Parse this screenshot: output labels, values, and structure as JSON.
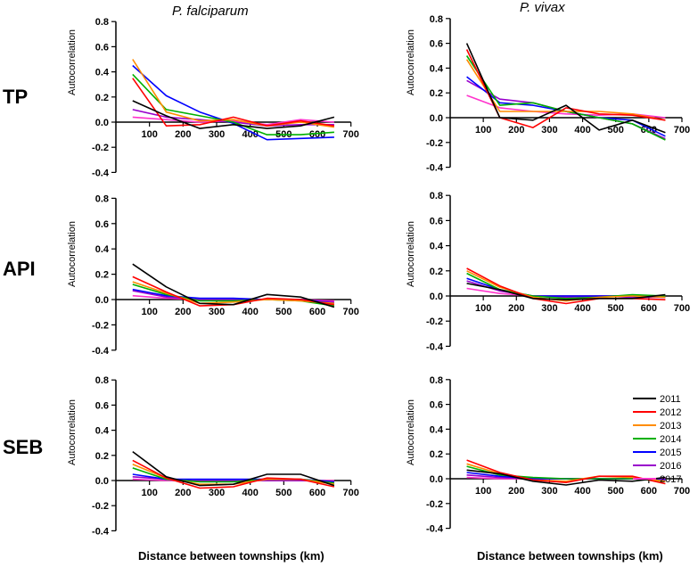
{
  "row_labels": [
    "TP",
    "API",
    "SEB"
  ],
  "column_titles": [
    "P. falciparum",
    "P. vivax"
  ],
  "x_axis_title_left": "Distance between townships (km)",
  "x_axis_title_right": "Distance between townships (km)",
  "chart_data": {
    "type": "line",
    "ylabel": "Autocorrelation",
    "xticks": [
      100,
      200,
      300,
      400,
      500,
      600,
      700
    ],
    "yticks": [
      -0.4,
      -0.2,
      0.0,
      0.2,
      0.4,
      0.6,
      0.8
    ],
    "ylim": [
      -0.4,
      0.8
    ],
    "xlim": [
      0,
      700
    ],
    "x": [
      50,
      150,
      250,
      350,
      450,
      550,
      650
    ],
    "legend": {
      "placement": "right, bottom row",
      "entries": [
        {
          "name": "2011",
          "color": "#000000"
        },
        {
          "name": "2012",
          "color": "#ff0000"
        },
        {
          "name": "2013",
          "color": "#ff8c00"
        },
        {
          "name": "2014",
          "color": "#00b000"
        },
        {
          "name": "2015",
          "color": "#0000ff"
        },
        {
          "name": "2016",
          "color": "#9900cc"
        },
        {
          "name": "2017",
          "color": "#ff33cc"
        }
      ]
    },
    "panels": [
      {
        "row": "TP",
        "column": "P. falciparum",
        "series": [
          {
            "name": "2011",
            "values": [
              0.17,
              0.05,
              -0.05,
              -0.02,
              -0.05,
              -0.03,
              0.04
            ]
          },
          {
            "name": "2012",
            "values": [
              0.35,
              -0.03,
              -0.02,
              0.04,
              -0.03,
              0.01,
              -0.03
            ]
          },
          {
            "name": "2013",
            "values": [
              0.5,
              0.08,
              0.01,
              0.02,
              -0.03,
              0.0,
              -0.04
            ]
          },
          {
            "name": "2014",
            "values": [
              0.38,
              0.1,
              0.05,
              0.0,
              -0.1,
              -0.1,
              -0.08
            ]
          },
          {
            "name": "2015",
            "values": [
              0.45,
              0.21,
              0.08,
              -0.01,
              -0.14,
              -0.13,
              -0.12
            ]
          },
          {
            "name": "2016",
            "values": [
              0.1,
              0.04,
              0.02,
              0.0,
              -0.03,
              -0.02,
              -0.02
            ]
          },
          {
            "name": "2017",
            "values": [
              0.04,
              0.02,
              0.0,
              0.01,
              -0.02,
              0.02,
              0.0
            ]
          }
        ]
      },
      {
        "row": "TP",
        "column": "P. vivax",
        "series": [
          {
            "name": "2011",
            "values": [
              0.6,
              0.0,
              -0.02,
              0.1,
              -0.1,
              -0.02,
              -0.12
            ]
          },
          {
            "name": "2012",
            "values": [
              0.55,
              0.0,
              -0.08,
              0.08,
              0.03,
              0.02,
              -0.02
            ]
          },
          {
            "name": "2013",
            "values": [
              0.47,
              0.05,
              0.05,
              0.05,
              0.05,
              0.03,
              -0.02
            ]
          },
          {
            "name": "2014",
            "values": [
              0.5,
              0.1,
              0.12,
              0.05,
              0.0,
              -0.05,
              -0.18
            ]
          },
          {
            "name": "2015",
            "values": [
              0.33,
              0.12,
              0.1,
              0.05,
              0.0,
              -0.02,
              -0.15
            ]
          },
          {
            "name": "2016",
            "values": [
              0.3,
              0.15,
              0.12,
              0.05,
              0.0,
              -0.05,
              -0.17
            ]
          },
          {
            "name": "2017",
            "values": [
              0.18,
              0.08,
              0.05,
              0.03,
              0.02,
              0.03,
              0.0
            ]
          }
        ]
      },
      {
        "row": "API",
        "column": "P. falciparum",
        "series": [
          {
            "name": "2011",
            "values": [
              0.28,
              0.1,
              -0.03,
              -0.04,
              0.04,
              0.02,
              -0.06
            ]
          },
          {
            "name": "2012",
            "values": [
              0.18,
              0.06,
              -0.05,
              -0.04,
              0.01,
              0.0,
              -0.04
            ]
          },
          {
            "name": "2013",
            "values": [
              0.14,
              0.05,
              -0.03,
              -0.02,
              0.0,
              -0.01,
              -0.03
            ]
          },
          {
            "name": "2014",
            "values": [
              0.12,
              0.04,
              -0.01,
              -0.01,
              0.0,
              -0.01,
              -0.05
            ]
          },
          {
            "name": "2015",
            "values": [
              0.08,
              0.03,
              0.01,
              0.01,
              0.0,
              0.0,
              -0.03
            ]
          },
          {
            "name": "2016",
            "values": [
              0.07,
              0.02,
              0.0,
              0.0,
              0.0,
              0.0,
              -0.02
            ]
          },
          {
            "name": "2017",
            "values": [
              0.03,
              0.01,
              0.0,
              0.0,
              0.0,
              0.0,
              -0.01
            ]
          }
        ]
      },
      {
        "row": "API",
        "column": "P. vivax",
        "series": [
          {
            "name": "2011",
            "values": [
              0.1,
              0.05,
              -0.02,
              -0.03,
              -0.02,
              -0.02,
              0.01
            ]
          },
          {
            "name": "2012",
            "values": [
              0.22,
              0.08,
              -0.02,
              -0.06,
              -0.02,
              -0.02,
              -0.03
            ]
          },
          {
            "name": "2013",
            "values": [
              0.2,
              0.07,
              -0.01,
              -0.04,
              -0.01,
              0.0,
              -0.01
            ]
          },
          {
            "name": "2014",
            "values": [
              0.18,
              0.05,
              0.0,
              -0.02,
              -0.01,
              0.01,
              0.0
            ]
          },
          {
            "name": "2015",
            "values": [
              0.14,
              0.05,
              0.0,
              0.0,
              0.0,
              0.0,
              -0.01
            ]
          },
          {
            "name": "2016",
            "values": [
              0.12,
              0.04,
              0.0,
              -0.01,
              0.0,
              -0.01,
              -0.01
            ]
          },
          {
            "name": "2017",
            "values": [
              0.06,
              0.02,
              0.0,
              0.0,
              0.0,
              0.0,
              0.0
            ]
          }
        ]
      },
      {
        "row": "SEB",
        "column": "P. falciparum",
        "series": [
          {
            "name": "2011",
            "values": [
              0.23,
              0.03,
              -0.04,
              -0.03,
              0.05,
              0.05,
              -0.04
            ]
          },
          {
            "name": "2012",
            "values": [
              0.16,
              0.02,
              -0.06,
              -0.05,
              0.02,
              0.01,
              -0.05
            ]
          },
          {
            "name": "2013",
            "values": [
              0.13,
              0.02,
              -0.03,
              -0.03,
              0.01,
              0.01,
              -0.03
            ]
          },
          {
            "name": "2014",
            "values": [
              0.1,
              0.01,
              -0.01,
              -0.01,
              0.01,
              0.01,
              -0.02
            ]
          },
          {
            "name": "2015",
            "values": [
              0.05,
              0.01,
              0.01,
              0.01,
              0.01,
              0.01,
              -0.01
            ]
          },
          {
            "name": "2016",
            "values": [
              0.03,
              0.01,
              0.0,
              0.0,
              0.0,
              0.0,
              -0.01
            ]
          },
          {
            "name": "2017",
            "values": [
              0.01,
              0.0,
              0.0,
              0.0,
              0.0,
              0.0,
              0.0
            ]
          }
        ]
      },
      {
        "row": "SEB",
        "column": "P. vivax",
        "series": [
          {
            "name": "2011",
            "values": [
              0.07,
              0.04,
              -0.02,
              -0.05,
              -0.01,
              -0.02,
              0.01
            ]
          },
          {
            "name": "2012",
            "values": [
              0.15,
              0.05,
              -0.01,
              -0.03,
              0.02,
              0.02,
              -0.04
            ]
          },
          {
            "name": "2013",
            "values": [
              0.12,
              0.04,
              -0.01,
              -0.02,
              0.02,
              0.01,
              -0.02
            ]
          },
          {
            "name": "2014",
            "values": [
              0.1,
              0.03,
              0.01,
              0.0,
              0.0,
              0.0,
              -0.02
            ]
          },
          {
            "name": "2015",
            "values": [
              0.05,
              0.02,
              0.0,
              0.0,
              0.0,
              0.0,
              -0.01
            ]
          },
          {
            "name": "2016",
            "values": [
              0.03,
              0.01,
              0.0,
              0.0,
              0.0,
              0.0,
              -0.01
            ]
          },
          {
            "name": "2017",
            "values": [
              0.01,
              0.0,
              0.0,
              0.0,
              0.0,
              0.0,
              0.0
            ]
          }
        ]
      }
    ]
  }
}
